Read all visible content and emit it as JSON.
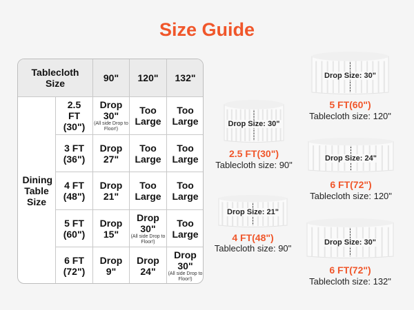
{
  "title": "Size Guide",
  "table": {
    "corner": "Tablecloth Size",
    "columns": [
      "90\"",
      "120\"",
      "132\""
    ],
    "row_group": "Dining Table Size",
    "rows": [
      {
        "size": "2.5 FT (30\")",
        "cells": [
          {
            "main": "Drop 30\"",
            "note": "(All side Drop to Floor!)"
          },
          {
            "main": "Too Large"
          },
          {
            "main": "Too Large"
          }
        ]
      },
      {
        "size": "3 FT (36\")",
        "cells": [
          {
            "main": "Drop 27\""
          },
          {
            "main": "Too Large"
          },
          {
            "main": "Too Large"
          }
        ]
      },
      {
        "size": "4 FT (48\")",
        "cells": [
          {
            "main": "Drop 21\""
          },
          {
            "main": "Too Large"
          },
          {
            "main": "Too Large"
          }
        ]
      },
      {
        "size": "5 FT (60\")",
        "cells": [
          {
            "main": "Drop 15\""
          },
          {
            "main": "Drop 30\"",
            "note": "(All side Drop to Floor!)"
          },
          {
            "main": "Too Large"
          }
        ]
      },
      {
        "size": "6 FT (72\")",
        "cells": [
          {
            "main": "Drop 9\""
          },
          {
            "main": "Drop 24\""
          },
          {
            "main": "Drop 30\"",
            "note": "(All side Drop to Floor!)"
          }
        ]
      }
    ]
  },
  "examples": [
    {
      "drop_label": "Drop Size: 30\"",
      "table": "2.5 FT(30\")",
      "cloth": "Tablecloth size: 90\""
    },
    {
      "drop_label": "Drop Size: 30\"",
      "table": "5 FT(60\")",
      "cloth": "Tablecloth size: 120\""
    },
    {
      "drop_label": "Drop Size: 24\"",
      "table": "6 FT(72\")",
      "cloth": "Tablecloth size: 120\""
    },
    {
      "drop_label": "Drop Size: 21\"",
      "table": "4 FT(48\")",
      "cloth": "Tablecloth size: 90\""
    },
    {
      "drop_label": "Drop Size: 30\"",
      "table": "6 FT(72\")",
      "cloth": "Tablecloth size: 132\""
    }
  ],
  "colors": {
    "accent": "#f0562a",
    "header_bg": "#ebebeb",
    "background": "#f5f5f5"
  }
}
